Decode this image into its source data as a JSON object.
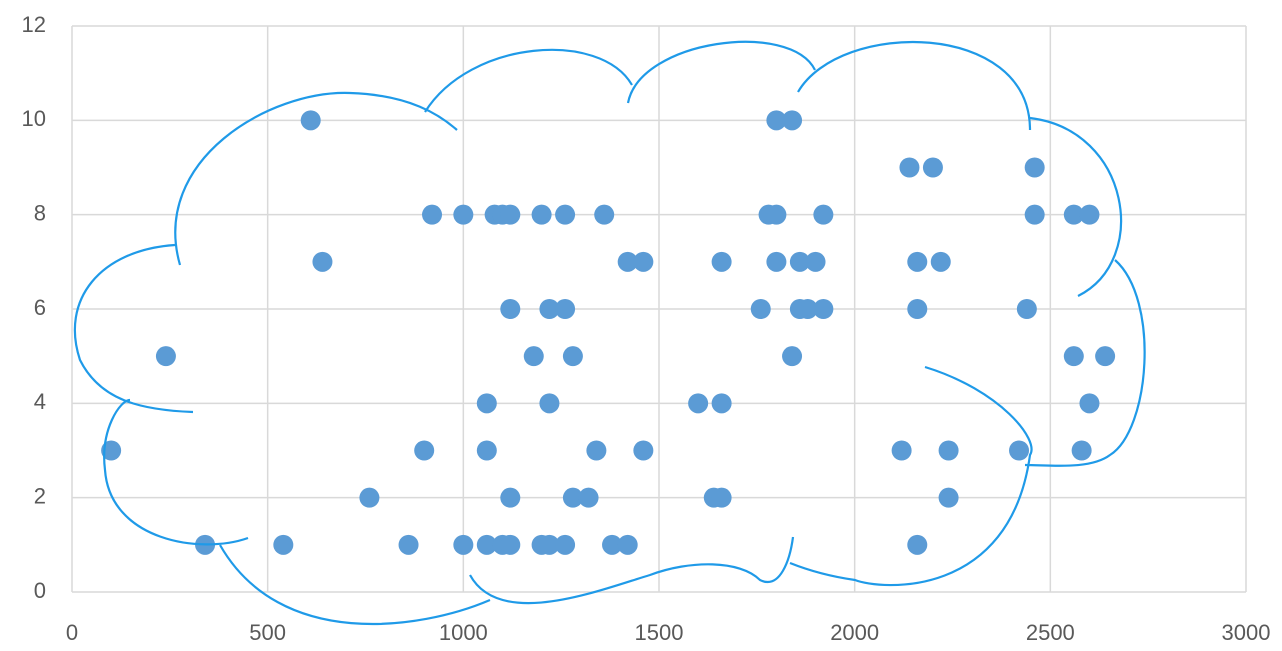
{
  "chart_data": {
    "type": "scatter",
    "color": "#5b9bd5",
    "grid": true,
    "xlim": [
      0,
      3000
    ],
    "xticks": [
      0,
      500,
      1000,
      1500,
      2000,
      2500,
      3000
    ],
    "ylim": [
      0,
      12
    ],
    "yticks": [
      0,
      2,
      4,
      6,
      8,
      10,
      12
    ],
    "x": [
      610,
      1800,
      1840,
      2140,
      2200,
      2460,
      920,
      1000,
      1080,
      1100,
      1120,
      1200,
      1260,
      1360,
      1780,
      1800,
      1920,
      2460,
      2560,
      2600,
      640,
      1420,
      1460,
      1660,
      1800,
      1860,
      1900,
      2160,
      2220,
      1120,
      1220,
      1260,
      1760,
      1860,
      1880,
      1920,
      2160,
      2440,
      240,
      1180,
      1280,
      1840,
      2560,
      2640,
      1060,
      1220,
      1600,
      1660,
      2600,
      100,
      900,
      1060,
      1340,
      1460,
      2120,
      2240,
      2420,
      2580,
      760,
      1120,
      1280,
      1320,
      1640,
      1660,
      2240,
      340,
      540,
      860,
      1000,
      1060,
      1100,
      1120,
      1200,
      1220,
      1260,
      1380,
      1420,
      2160
    ],
    "y": [
      10,
      10,
      10,
      9,
      9,
      9,
      8,
      8,
      8,
      8,
      8,
      8,
      8,
      8,
      8,
      8,
      8,
      8,
      8,
      8,
      7,
      7,
      7,
      7,
      7,
      7,
      7,
      7,
      7,
      6,
      6,
      6,
      6,
      6,
      6,
      6,
      6,
      6,
      5,
      5,
      5,
      5,
      5,
      5,
      4,
      4,
      4,
      4,
      4,
      3,
      3,
      3,
      3,
      3,
      3,
      3,
      3,
      3,
      2,
      2,
      2,
      2,
      2,
      2,
      2,
      1,
      1,
      1,
      1,
      1,
      1,
      1,
      1,
      1,
      1,
      1,
      1,
      1
    ]
  }
}
